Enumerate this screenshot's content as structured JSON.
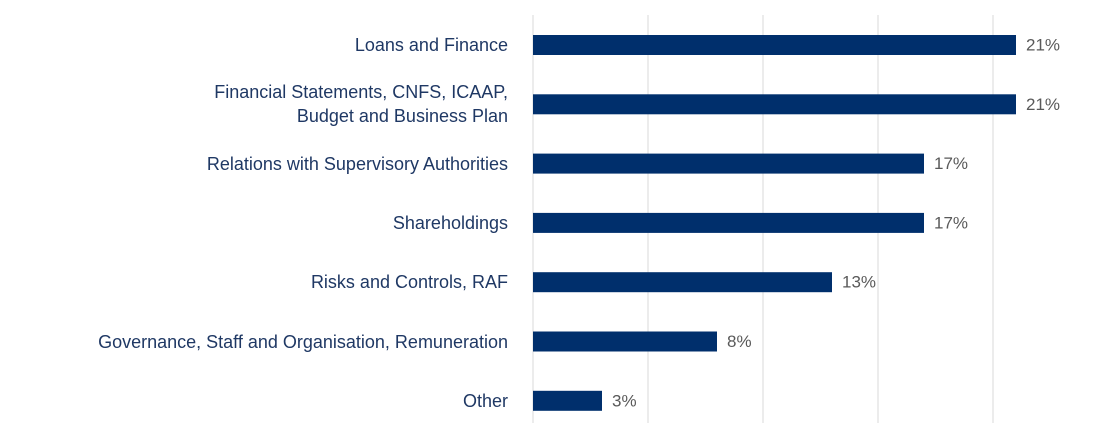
{
  "chart_data": {
    "type": "bar",
    "orientation": "horizontal",
    "categories": [
      "Loans and Finance",
      "Financial Statements, CNFS, ICAAP,\nBudget and Business Plan",
      "Relations with Supervisory Authorities",
      "Shareholdings",
      "Risks and Controls, RAF",
      "Governance, Staff and Organisation, Remuneration",
      "Other"
    ],
    "values": [
      21,
      21,
      17,
      17,
      13,
      8,
      3
    ],
    "value_labels": [
      "21%",
      "21%",
      "17%",
      "17%",
      "13%",
      "8%",
      "3%"
    ],
    "color": "#002f6c",
    "xlim": [
      0,
      25
    ],
    "xticks": [
      0,
      5,
      10,
      15,
      20
    ],
    "grid": true
  }
}
